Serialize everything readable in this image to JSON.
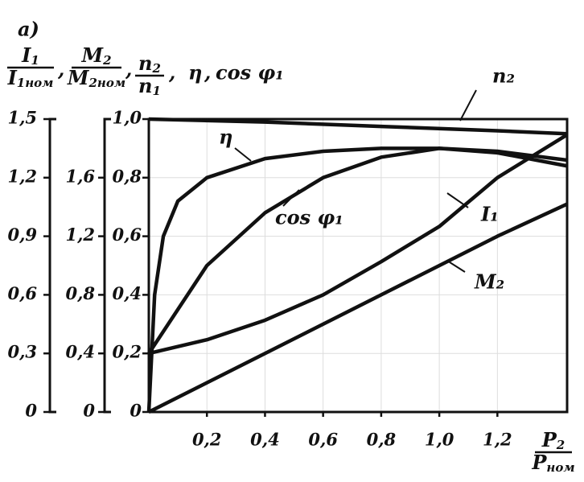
{
  "chart_data": {
    "type": "line",
    "panel_label": "a)",
    "separator": ",",
    "axis_headers": [
      {
        "numerator": "I",
        "numerator_sub": "1",
        "denominator": "I",
        "denominator_sub": "1ном"
      },
      {
        "numerator": "M",
        "numerator_sub": "2",
        "denominator": "M",
        "denominator_sub": "2ном"
      },
      {
        "numerator": "n",
        "numerator_sub": "2",
        "denominator": "n",
        "denominator_sub": "1"
      }
    ],
    "header_extra": [
      "η",
      "cos φ₁"
    ],
    "xlabel": {
      "numerator": "P",
      "numerator_sub": "2",
      "denominator": "P",
      "denominator_sub": "ном"
    },
    "xlim": [
      0,
      1.44
    ],
    "xticks": [
      {
        "value": 0.2,
        "label": "0,2"
      },
      {
        "value": 0.4,
        "label": "0,4"
      },
      {
        "value": 0.6,
        "label": "0,6"
      },
      {
        "value": 0.8,
        "label": "0,8"
      },
      {
        "value": 1.0,
        "label": "1,0"
      },
      {
        "value": 1.2,
        "label": "1,2"
      }
    ],
    "ylim": [
      0,
      1.0
    ],
    "yticks": [
      0,
      {
        "value": 0.2,
        "label": "0,2"
      },
      {
        "value": 0.4,
        "label": "0,4"
      },
      {
        "value": 0.6,
        "label": "0,6"
      },
      {
        "value": 0.8,
        "label": "0,8"
      },
      {
        "value": 1.0,
        "label": "1,0"
      }
    ],
    "y2lim": [
      0,
      2.0
    ],
    "y2ticks": [
      0,
      {
        "value": 0.4,
        "label": "0,4"
      },
      {
        "value": 0.8,
        "label": "0,8"
      },
      {
        "value": 1.2,
        "label": "1,2"
      },
      {
        "value": 1.6,
        "label": "1,6"
      }
    ],
    "y3lim": [
      0,
      1.5
    ],
    "y3ticks": [
      0,
      {
        "value": 0.3,
        "label": "0,3"
      },
      {
        "value": 0.6,
        "label": "0,6"
      },
      {
        "value": 0.9,
        "label": "0,9"
      },
      {
        "value": 1.2,
        "label": "1,2"
      },
      {
        "value": 1.5,
        "label": "1,5"
      }
    ],
    "grid": true,
    "series": [
      {
        "name": "n₂",
        "color": "#111",
        "x": [
          0,
          0.4,
          0.8,
          1.2,
          1.44
        ],
        "values": [
          1.0,
          0.99,
          0.975,
          0.96,
          0.95
        ]
      },
      {
        "name": "η",
        "color": "#111",
        "x": [
          0,
          0.02,
          0.05,
          0.1,
          0.2,
          0.4,
          0.6,
          0.8,
          1.0,
          1.2,
          1.44
        ],
        "values": [
          0,
          0.4,
          0.6,
          0.72,
          0.8,
          0.865,
          0.89,
          0.9,
          0.9,
          0.885,
          0.84
        ]
      },
      {
        "name": "cos φ₁",
        "color": "#111",
        "x": [
          0,
          0.1,
          0.2,
          0.4,
          0.6,
          0.8,
          1.0,
          1.2,
          1.44
        ],
        "values": [
          0.2,
          0.35,
          0.5,
          0.68,
          0.8,
          0.87,
          0.9,
          0.89,
          0.86
        ]
      },
      {
        "name": "I₁",
        "color": "#111",
        "axis": "y3",
        "x": [
          0,
          0.2,
          0.4,
          0.6,
          0.8,
          1.0,
          1.2,
          1.44
        ],
        "values": [
          0.3,
          0.37,
          0.47,
          0.6,
          0.77,
          0.95,
          1.2,
          1.42
        ]
      },
      {
        "name": "M₂",
        "color": "#111",
        "axis": "y2",
        "x": [
          0,
          0.4,
          0.8,
          1.2,
          1.44
        ],
        "values": [
          0,
          0.4,
          0.8,
          1.2,
          1.42
        ]
      }
    ]
  }
}
